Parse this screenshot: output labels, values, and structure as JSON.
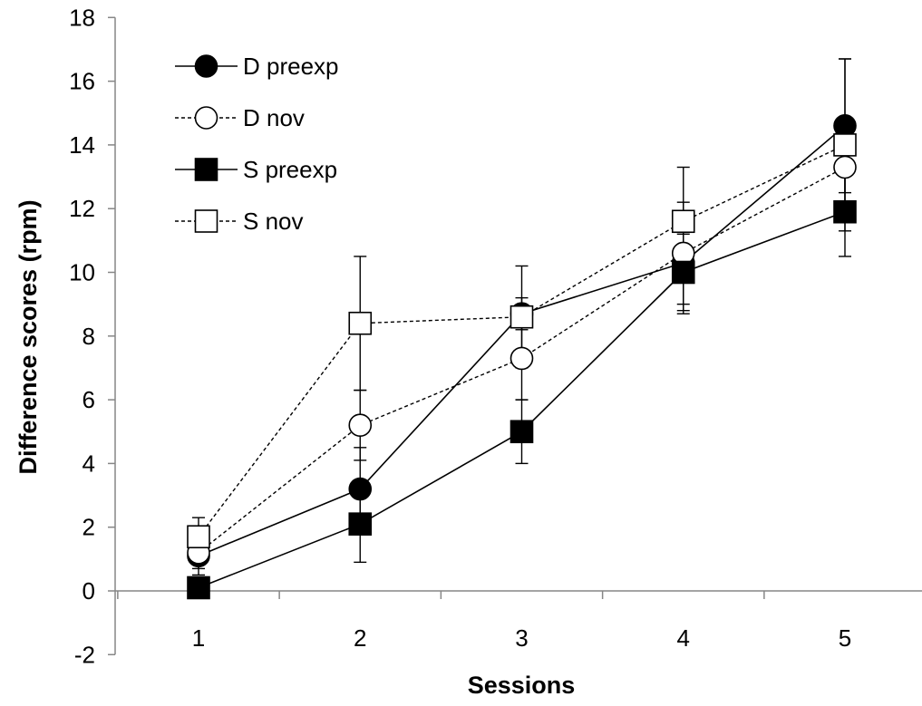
{
  "chart_data": {
    "type": "line",
    "xlabel": "Sessions",
    "ylabel": "Difference scores (rpm)",
    "x": [
      1,
      2,
      3,
      4,
      5
    ],
    "ylim": [
      -2,
      18
    ],
    "yticks": [
      -2,
      0,
      2,
      4,
      6,
      8,
      10,
      12,
      14,
      16,
      18
    ],
    "grid": false,
    "legend_position": "top-left",
    "series": [
      {
        "name": "D preexp",
        "marker": "circle",
        "fill": "#000000",
        "line": "solid",
        "values": [
          1.1,
          3.2,
          8.7,
          10.3,
          14.6
        ],
        "errors": [
          0.6,
          1.3,
          0.5,
          1.6,
          2.1
        ]
      },
      {
        "name": "D nov",
        "marker": "circle",
        "fill": "#ffffff",
        "line": "dashed",
        "values": [
          1.2,
          5.2,
          7.3,
          10.6,
          13.3
        ],
        "errors": [
          0.5,
          1.1,
          1.3,
          1.6,
          1.4
        ]
      },
      {
        "name": "S preexp",
        "marker": "square",
        "fill": "#000000",
        "line": "solid",
        "values": [
          0.1,
          2.1,
          5.0,
          10.0,
          11.9
        ],
        "errors": [
          0.3,
          1.2,
          1.0,
          1.2,
          1.4
        ]
      },
      {
        "name": "S nov",
        "marker": "square",
        "fill": "#ffffff",
        "line": "dashed",
        "values": [
          1.7,
          8.4,
          8.6,
          11.6,
          14.0
        ],
        "errors": [
          0.6,
          2.1,
          1.6,
          1.7,
          2.7
        ]
      }
    ]
  }
}
